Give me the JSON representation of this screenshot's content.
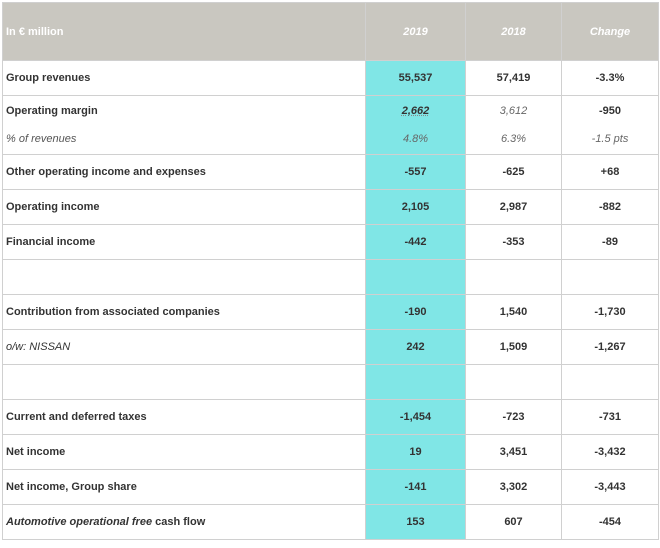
{
  "table": {
    "header": {
      "label": "In € million",
      "col_2019": "2019",
      "col_2018": "2018",
      "col_change": "Change"
    },
    "rows": {
      "group_revenues": {
        "label": "Group revenues",
        "v2019": "55,537",
        "v2018": "57,419",
        "change": "-3.3%"
      },
      "operating_margin": {
        "label": "Operating margin",
        "v2019": "2,662",
        "v2018": "3,612",
        "change": "-950"
      },
      "pct_revenues": {
        "label": "% of revenues",
        "v2019": "4.8%",
        "v2018": "6.3%",
        "change": "-1.5 pts"
      },
      "other_operating": {
        "label": "Other operating income and expenses",
        "v2019": "-557",
        "v2018": "-625",
        "change": "+68"
      },
      "operating_income": {
        "label": "Operating income",
        "v2019": "2,105",
        "v2018": "2,987",
        "change": "-882"
      },
      "financial_income": {
        "label": "Financial income",
        "v2019": "-442",
        "v2018": "-353",
        "change": "-89"
      },
      "contribution_assoc": {
        "label": "Contribution from associated companies",
        "v2019": "-190",
        "v2018": "1,540",
        "change": "-1,730"
      },
      "ow_nissan": {
        "label": "o/w: NISSAN",
        "v2019": "242",
        "v2018": "1,509",
        "change": "-1,267"
      },
      "taxes": {
        "label": "Current and deferred taxes",
        "v2019": "-1,454",
        "v2018": "-723",
        "change": "-731"
      },
      "net_income": {
        "label": "Net income",
        "v2019": "19",
        "v2018": "3,451",
        "change": "-3,432"
      },
      "net_income_group": {
        "label": "Net income, Group share",
        "v2019": "-141",
        "v2018": "3,302",
        "change": "-3,443"
      },
      "auto_fcf": {
        "label_italic": "Automotive operational free",
        "label_rest": " cash flow",
        "v2019": "153",
        "v2018": "607",
        "change": "-454"
      }
    }
  },
  "colors": {
    "header_bg": "#c9c7c0",
    "highlight_2019": "#80e6e6",
    "border": "#d0d0d0"
  }
}
